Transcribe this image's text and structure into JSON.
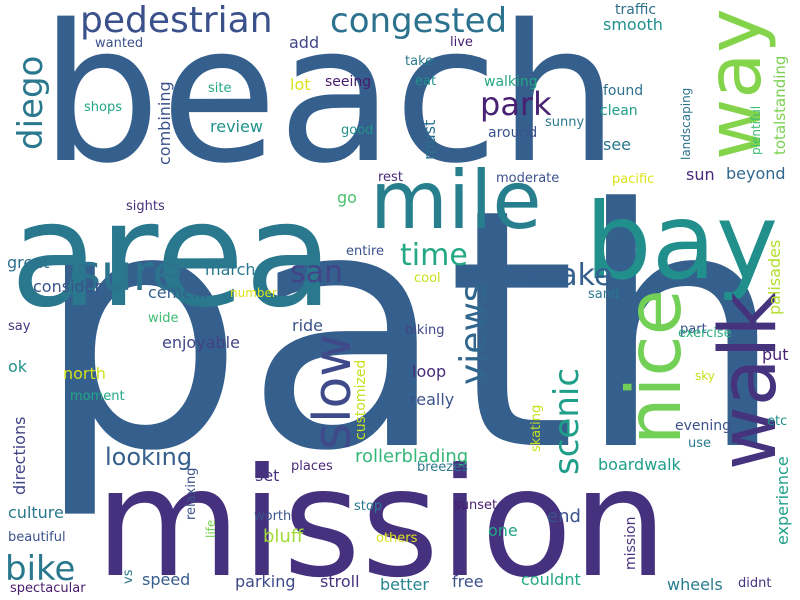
{
  "words": [
    {
      "text": "path",
      "color": "#355f8d"
    },
    {
      "text": "beach",
      "color": "#355f8d"
    },
    {
      "text": "mission",
      "color": "#46317e"
    },
    {
      "text": "area",
      "color": "#2a788e"
    },
    {
      "text": "mile",
      "color": "#277f8e"
    },
    {
      "text": "bay",
      "color": "#21908d"
    },
    {
      "text": "walk",
      "color": "#46337e"
    },
    {
      "text": "nice",
      "color": "#73d056"
    },
    {
      "text": "way",
      "color": "#84d44b"
    },
    {
      "text": "slow",
      "color": "#3e4a89"
    },
    {
      "text": "sure",
      "color": "#2c738e"
    },
    {
      "text": "pedestrian",
      "color": "#3b518b"
    },
    {
      "text": "congested",
      "color": "#2c728e"
    },
    {
      "text": "park",
      "color": "#482173"
    },
    {
      "text": "diego",
      "color": "#2a788e"
    },
    {
      "text": "views",
      "color": "#31668e"
    },
    {
      "text": "scenic",
      "color": "#1f9e89"
    },
    {
      "text": "san",
      "color": "#414487"
    },
    {
      "text": "make",
      "color": "#355f8d"
    },
    {
      "text": "time",
      "color": "#22a884"
    },
    {
      "text": "bike",
      "color": "#2a788e"
    },
    {
      "text": "looking",
      "color": "#355f8d"
    },
    {
      "text": "mission",
      "color": "#46327e"
    },
    {
      "text": "rollerblading",
      "color": "#35b779"
    },
    {
      "text": "boardwalk",
      "color": "#1f9e89"
    },
    {
      "text": "customized",
      "color": "#c8e020"
    },
    {
      "text": "experience",
      "color": "#1f9e89"
    },
    {
      "text": "palisades",
      "color": "#b5de2b"
    },
    {
      "text": "totalstanding",
      "color": "#7ad151"
    },
    {
      "text": "plentiful",
      "color": "#3fbc73"
    },
    {
      "text": "landscaping",
      "color": "#2c728e"
    },
    {
      "text": "directions",
      "color": "#414487"
    },
    {
      "text": "combining",
      "color": "#3b528b"
    },
    {
      "text": "must",
      "color": "#2d708e"
    },
    {
      "text": "enjoyable",
      "color": "#414487"
    },
    {
      "text": "consider",
      "color": "#3b528b"
    },
    {
      "text": "culture",
      "color": "#2a788e"
    },
    {
      "text": "parking",
      "color": "#3e4a89"
    },
    {
      "text": "speed",
      "color": "#365d8d"
    },
    {
      "text": "wheels",
      "color": "#287c8e"
    },
    {
      "text": "couldnt",
      "color": "#22a884"
    },
    {
      "text": "better",
      "color": "#25858e"
    },
    {
      "text": "free",
      "color": "#3b528b"
    },
    {
      "text": "stroll",
      "color": "#46337e"
    },
    {
      "text": "bluff",
      "color": "#a0da39"
    },
    {
      "text": "set",
      "color": "#46327e"
    },
    {
      "text": "end",
      "color": "#3b528b"
    },
    {
      "text": "one",
      "color": "#20a486"
    },
    {
      "text": "loop",
      "color": "#472c7a"
    },
    {
      "text": "really",
      "color": "#3b528b"
    },
    {
      "text": "put",
      "color": "#482475"
    },
    {
      "text": "north",
      "color": "#d0e11c"
    },
    {
      "text": "ok",
      "color": "#21918c"
    },
    {
      "text": "great",
      "color": "#2d708e"
    },
    {
      "text": "march",
      "color": "#2a788e"
    },
    {
      "text": "cement",
      "color": "#355f8d"
    },
    {
      "text": "ride",
      "color": "#3b528b"
    },
    {
      "text": "go",
      "color": "#4ac16d"
    },
    {
      "text": "sun",
      "color": "#482878"
    },
    {
      "text": "beyond",
      "color": "#31688e"
    },
    {
      "text": "see",
      "color": "#2a788e"
    },
    {
      "text": "review",
      "color": "#21918c"
    },
    {
      "text": "lot",
      "color": "#dde318"
    },
    {
      "text": "add",
      "color": "#404688"
    },
    {
      "text": "smooth",
      "color": "#21918c"
    },
    {
      "text": "traffic",
      "color": "#2d708e"
    },
    {
      "text": "wanted",
      "color": "#3b528b"
    },
    {
      "text": "live",
      "color": "#482173"
    },
    {
      "text": "take",
      "color": "#2a788e"
    },
    {
      "text": "eat",
      "color": "#21918c"
    },
    {
      "text": "seeing",
      "color": "#481b6d"
    },
    {
      "text": "walking",
      "color": "#22a884"
    },
    {
      "text": "found",
      "color": "#2d708e"
    },
    {
      "text": "clean",
      "color": "#1f9e89"
    },
    {
      "text": "sunny",
      "color": "#2a788e"
    },
    {
      "text": "around",
      "color": "#3b528b"
    },
    {
      "text": "good",
      "color": "#21918c"
    },
    {
      "text": "shops",
      "color": "#22a884"
    },
    {
      "text": "site",
      "color": "#22a884"
    },
    {
      "text": "rest",
      "color": "#482878"
    },
    {
      "text": "moderate",
      "color": "#3b528b"
    },
    {
      "text": "pacific",
      "color": "#dde318"
    },
    {
      "text": "sights",
      "color": "#46317e"
    },
    {
      "text": "entire",
      "color": "#3b528b"
    },
    {
      "text": "cool",
      "color": "#c8e020"
    },
    {
      "text": "number",
      "color": "#dde318"
    },
    {
      "text": "sand",
      "color": "#2a788e"
    },
    {
      "text": "part",
      "color": "#3b528b"
    },
    {
      "text": "wide",
      "color": "#3fbc73"
    },
    {
      "text": "say",
      "color": "#46337e"
    },
    {
      "text": "biking",
      "color": "#404688"
    },
    {
      "text": "exercise",
      "color": "#29af7f"
    },
    {
      "text": "moment",
      "color": "#22a884"
    },
    {
      "text": "skating",
      "color": "#c8e020"
    },
    {
      "text": "sky",
      "color": "#c8e020"
    },
    {
      "text": "etc",
      "color": "#21918c"
    },
    {
      "text": "evening",
      "color": "#3b528b"
    },
    {
      "text": "use",
      "color": "#2a788e"
    },
    {
      "text": "places",
      "color": "#482878"
    },
    {
      "text": "breezes",
      "color": "#2a788e"
    },
    {
      "text": "stop",
      "color": "#2a788e"
    },
    {
      "text": "sunset",
      "color": "#481b6d"
    },
    {
      "text": "relaxing",
      "color": "#3b528b"
    },
    {
      "text": "worth",
      "color": "#3b528b"
    },
    {
      "text": "life",
      "color": "#7ad151"
    },
    {
      "text": "others",
      "color": "#dde318"
    },
    {
      "text": "beautiful",
      "color": "#3b528b"
    },
    {
      "text": "vs",
      "color": "#2a788e"
    },
    {
      "text": "spectacular",
      "color": "#481b6d"
    },
    {
      "text": "didnt",
      "color": "#46337e"
    }
  ]
}
